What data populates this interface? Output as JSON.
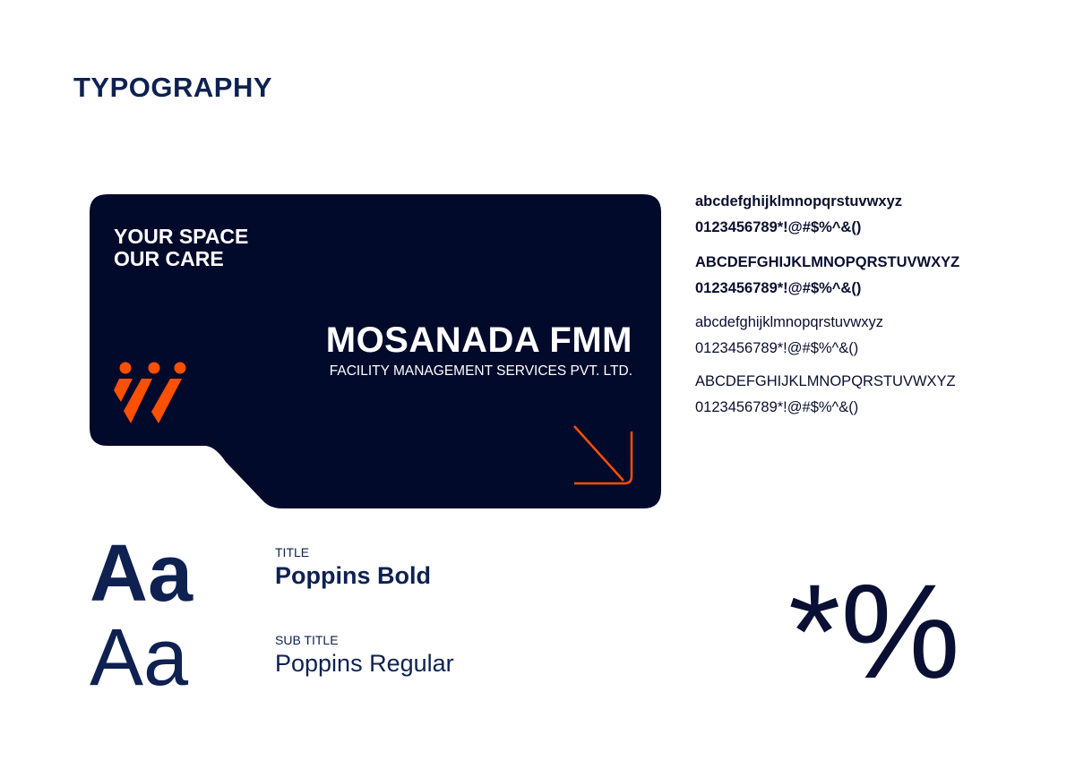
{
  "heading": "TYPOGRAPHY",
  "card": {
    "tagline_line1": "YOUR SPACE",
    "tagline_line2": "OUR CARE",
    "brand_name": "MOSANADA FMM",
    "brand_subtitle": "FACILITY MANAGEMENT SERVICES PVT. LTD.",
    "logo_icon": "three-figures-logo-icon",
    "arrow_icon": "arrow-down-right-icon",
    "background_color": "#020a2b",
    "accent_color": "#fe5000"
  },
  "specimens": {
    "bold_lower": "abcdefghijklmnopqrstuvwxyz",
    "bold_digits1": "0123456789*!@#$%^&()",
    "bold_upper": "ABCDEFGHIJKLMNOPQRSTUVWXYZ",
    "bold_digits2": "0123456789*!@#$%^&()",
    "regular_lower": "abcdefghijklmnopqrstuvwxyz",
    "regular_digits1": "0123456789*!@#$%^&()",
    "regular_upper": "ABCDEFGHIJKLMNOPQRSTUVWXYZ",
    "regular_digits2": "0123456789*!@#$%^&()"
  },
  "fonts": {
    "sample_bold": "Aa",
    "title_label": "TITLE",
    "title_font": "Poppins Bold",
    "sample_regular": "Aa",
    "subtitle_label": "SUB TITLE",
    "subtitle_font": "Poppins Regular"
  },
  "symbols": "*%"
}
